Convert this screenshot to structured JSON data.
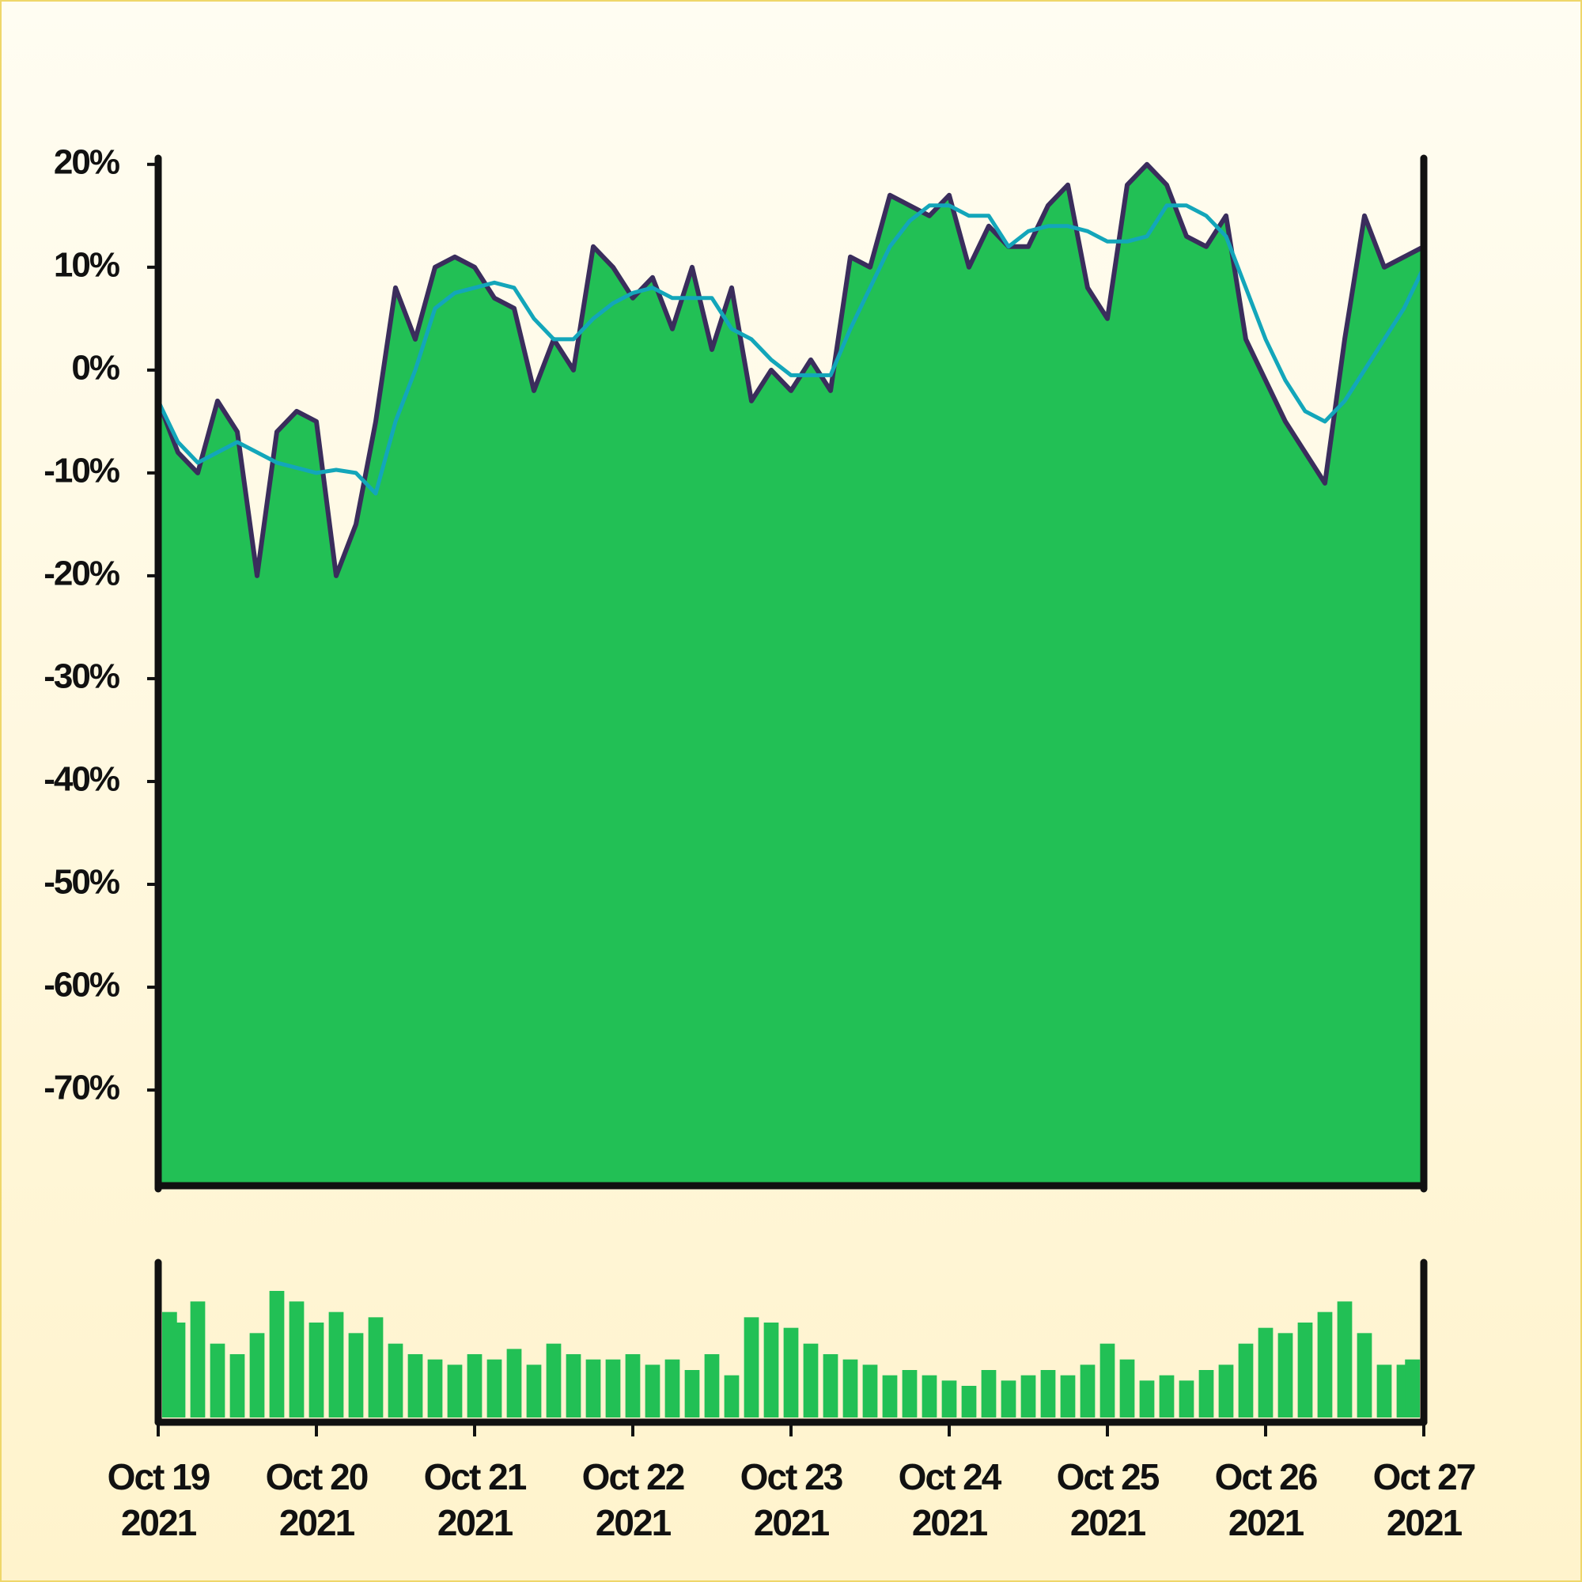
{
  "chart_data": [
    {
      "type": "area",
      "x": [
        0,
        0.125,
        0.25,
        0.375,
        0.5,
        0.625,
        0.75,
        0.875,
        1,
        1.125,
        1.25,
        1.375,
        1.5,
        1.625,
        1.75,
        1.875,
        2,
        2.125,
        2.25,
        2.375,
        2.5,
        2.625,
        2.75,
        2.875,
        3,
        3.125,
        3.25,
        3.375,
        3.5,
        3.625,
        3.75,
        3.875,
        4,
        4.125,
        4.25,
        4.375,
        4.5,
        4.625,
        4.75,
        4.875,
        5,
        5.125,
        5.25,
        5.375,
        5.5,
        5.625,
        5.75,
        5.875,
        6,
        6.125,
        6.25,
        6.375,
        6.5,
        6.625,
        6.75,
        6.875,
        7,
        7.125,
        7.25,
        7.375,
        7.5,
        7.625,
        7.75,
        7.875,
        8
      ],
      "series": [
        {
          "color": "#3a2d5c",
          "fill": "#22c055",
          "values": [
            -3,
            -8,
            -10,
            -3,
            -6,
            -20,
            -6,
            -4,
            -5,
            -20,
            -15,
            -5,
            8,
            3,
            10,
            11,
            10,
            7,
            6,
            -2,
            3,
            0,
            12,
            10,
            7,
            9,
            4,
            10,
            2,
            8,
            -3,
            0,
            -2,
            1,
            -2,
            11,
            10,
            17,
            16,
            15,
            17,
            10,
            14,
            12,
            12,
            16,
            18,
            8,
            5,
            18,
            20,
            18,
            13,
            12,
            15,
            3,
            -1,
            -5,
            -8,
            -11,
            3,
            15,
            10,
            11,
            12
          ]
        },
        {
          "color": "#13a6ba",
          "values": [
            -3,
            -7,
            -9,
            -8,
            -7,
            -8,
            -9,
            -9.5,
            -10,
            -9.7,
            -10,
            -12,
            -5,
            0,
            6,
            7.5,
            8,
            8.5,
            8,
            5,
            3,
            3,
            5,
            6.5,
            7.5,
            8,
            7,
            7,
            7,
            4,
            3,
            1,
            -0.5,
            -0.5,
            -0.5,
            4,
            8,
            12,
            14.5,
            16,
            16,
            15,
            15,
            12,
            13.5,
            14,
            14,
            13.5,
            12.5,
            12.5,
            13,
            16,
            16,
            15,
            13,
            8,
            3,
            -1,
            -4,
            -5,
            -3,
            0,
            3,
            6,
            10
          ]
        }
      ],
      "xlim": [
        0,
        8
      ],
      "ylim": [
        -79.3,
        20.6
      ],
      "yticks": [
        {
          "value": 20,
          "label": "20%"
        },
        {
          "value": 10,
          "label": "10%"
        },
        {
          "value": 0,
          "label": "0%"
        },
        {
          "value": -10,
          "label": "-10%"
        },
        {
          "value": -20,
          "label": "-20%"
        },
        {
          "value": -30,
          "label": "-30%"
        },
        {
          "value": -40,
          "label": "-40%"
        },
        {
          "value": -50,
          "label": "-50%"
        },
        {
          "value": -60,
          "label": "-60%"
        },
        {
          "value": -70,
          "label": "-70%"
        }
      ]
    },
    {
      "type": "bar",
      "color": "#22c055",
      "x": [
        0,
        0.125,
        0.25,
        0.375,
        0.5,
        0.625,
        0.75,
        0.875,
        1,
        1.125,
        1.25,
        1.375,
        1.5,
        1.625,
        1.75,
        1.875,
        2,
        2.125,
        2.25,
        2.375,
        2.5,
        2.625,
        2.75,
        2.875,
        3,
        3.125,
        3.25,
        3.375,
        3.5,
        3.625,
        3.75,
        3.875,
        4,
        4.125,
        4.25,
        4.375,
        4.5,
        4.625,
        4.75,
        4.875,
        5,
        5.125,
        5.25,
        5.375,
        5.5,
        5.625,
        5.75,
        5.875,
        6,
        6.125,
        6.25,
        6.375,
        6.5,
        6.625,
        6.75,
        6.875,
        7,
        7.125,
        7.25,
        7.375,
        7.5,
        7.625,
        7.75,
        7.875,
        8
      ],
      "values": [
        100,
        90,
        110,
        70,
        60,
        80,
        120,
        110,
        90,
        100,
        80,
        95,
        70,
        60,
        55,
        50,
        60,
        55,
        65,
        50,
        70,
        60,
        55,
        55,
        60,
        50,
        55,
        45,
        60,
        40,
        95,
        90,
        85,
        70,
        60,
        55,
        50,
        40,
        45,
        40,
        35,
        30,
        45,
        35,
        40,
        45,
        40,
        50,
        70,
        55,
        35,
        40,
        35,
        45,
        50,
        70,
        85,
        80,
        90,
        100,
        110,
        80,
        50,
        50,
        55
      ],
      "xlim": [
        0,
        8
      ],
      "xticks": [
        {
          "value": 0,
          "label": "Oct 19 2021"
        },
        {
          "value": 1,
          "label": "Oct 20 2021"
        },
        {
          "value": 2,
          "label": "Oct 21 2021"
        },
        {
          "value": 3,
          "label": "Oct 22 2021"
        },
        {
          "value": 4,
          "label": "Oct 23 2021"
        },
        {
          "value": 5,
          "label": "Oct 24 2021"
        },
        {
          "value": 6,
          "label": "Oct 25 2021"
        },
        {
          "value": 7,
          "label": "Oct 26 2021"
        },
        {
          "value": 8,
          "label": "Oct 27 2021"
        }
      ]
    }
  ]
}
